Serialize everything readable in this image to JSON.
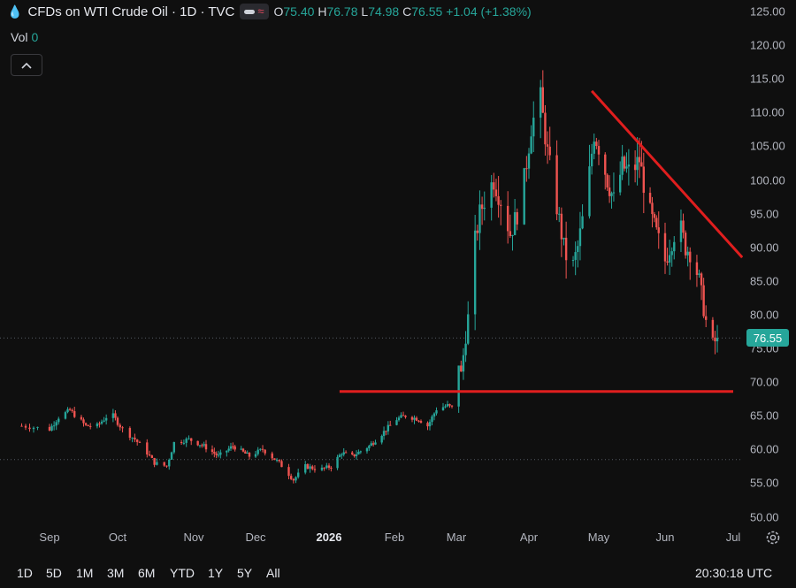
{
  "header": {
    "title": "CFDs on WTI Crude Oil · 1D · TVC",
    "ohlc": {
      "o_label": "O",
      "o": "75.40",
      "h_label": "H",
      "h": "76.78",
      "l_label": "L",
      "l": "74.98",
      "c_label": "C",
      "c": "76.55",
      "change": "+1.04 (+1.38%)"
    },
    "vol_label": "Vol",
    "vol_value": "0"
  },
  "current_price": "76.55",
  "footer": {
    "ranges": [
      "1D",
      "5D",
      "1M",
      "3M",
      "6M",
      "YTD",
      "1Y",
      "5Y",
      "All"
    ],
    "time": "20:30:18 UTC"
  },
  "colors": {
    "up": "#26a69a",
    "down": "#ef5350",
    "annotation": "#e01e1e",
    "bg": "#0f0f0f"
  },
  "chart_data": {
    "type": "candlestick",
    "y_ticks": [
      "125.00",
      "120.00",
      "115.00",
      "110.00",
      "105.00",
      "100.00",
      "95.00",
      "90.00",
      "85.00",
      "80.00",
      "75.00",
      "70.00",
      "65.00",
      "60.00",
      "55.00",
      "50.00"
    ],
    "ylim": [
      48.5,
      126
    ],
    "x_ticks": [
      "Sep",
      "Oct",
      "Nov",
      "Dec",
      "2026",
      "Feb",
      "Mar",
      "Apr",
      "May",
      "Jun",
      "Jul"
    ],
    "series": [
      {
        "anchors": [
          [
            "2025-08-25",
            63.5
          ],
          [
            "2025-09-01",
            63.0
          ],
          [
            "2025-09-05",
            64.8
          ],
          [
            "2025-09-10",
            65.8
          ],
          [
            "2025-09-17",
            63.5
          ],
          [
            "2025-09-22",
            63.5
          ],
          [
            "2025-09-28",
            65.5
          ],
          [
            "2025-10-03",
            63.0
          ],
          [
            "2025-10-08",
            61.5
          ],
          [
            "2025-10-12",
            60.0
          ],
          [
            "2025-10-16",
            58.0
          ],
          [
            "2025-10-21",
            57.5
          ],
          [
            "2025-10-24",
            61.0
          ],
          [
            "2025-10-30",
            61.5
          ],
          [
            "2025-11-06",
            60.5
          ],
          [
            "2025-11-13",
            59.0
          ],
          [
            "2025-11-20",
            60.5
          ],
          [
            "2025-11-28",
            59.0
          ],
          [
            "2025-12-04",
            60.0
          ],
          [
            "2025-12-11",
            58.0
          ],
          [
            "2025-12-17",
            55.5
          ],
          [
            "2025-12-22",
            57.5
          ],
          [
            "2025-12-28",
            57.0
          ],
          [
            "2026-01-02",
            57.5
          ],
          [
            "2026-01-07",
            59.5
          ],
          [
            "2026-01-12",
            59.0
          ],
          [
            "2026-01-20",
            60.5
          ],
          [
            "2026-01-25",
            62.0
          ],
          [
            "2026-02-02",
            64.5
          ],
          [
            "2026-02-06",
            65.0
          ],
          [
            "2026-02-12",
            64.5
          ],
          [
            "2026-02-16",
            63.5
          ],
          [
            "2026-02-20",
            66.0
          ],
          [
            "2026-02-25",
            66.5
          ],
          [
            "2026-02-28",
            66.0
          ],
          [
            "2026-03-02",
            73.0
          ],
          [
            "2026-03-03",
            71.0
          ],
          [
            "2026-03-05",
            77.0
          ],
          [
            "2026-03-07",
            82.0
          ],
          [
            "2026-03-09",
            91.0
          ],
          [
            "2026-03-11",
            95.0
          ],
          [
            "2026-03-14",
            98.0
          ],
          [
            "2026-03-17",
            100.0
          ],
          [
            "2026-03-20",
            97.0
          ],
          [
            "2026-03-24",
            92.0
          ],
          [
            "2026-03-27",
            95.0
          ],
          [
            "2026-03-30",
            100.0
          ],
          [
            "2026-04-02",
            108.0
          ],
          [
            "2026-04-06",
            112.0
          ],
          [
            "2026-04-09",
            104.0
          ],
          [
            "2026-04-12",
            98.0
          ],
          [
            "2026-04-16",
            90.0
          ],
          [
            "2026-04-19",
            86.0
          ],
          [
            "2026-04-22",
            90.0
          ],
          [
            "2026-04-26",
            98.0
          ],
          [
            "2026-04-29",
            107.0
          ],
          [
            "2026-05-02",
            104.0
          ],
          [
            "2026-05-05",
            100.0
          ],
          [
            "2026-05-08",
            97.0
          ],
          [
            "2026-05-12",
            102.0
          ],
          [
            "2026-05-16",
            101.0
          ],
          [
            "2026-05-20",
            103.0
          ],
          [
            "2026-05-24",
            96.0
          ],
          [
            "2026-05-28",
            92.0
          ],
          [
            "2026-06-01",
            88.0
          ],
          [
            "2026-06-04",
            91.0
          ],
          [
            "2026-06-07",
            94.0
          ],
          [
            "2026-06-10",
            90.0
          ],
          [
            "2026-06-13",
            89.0
          ],
          [
            "2026-06-16",
            85.0
          ],
          [
            "2026-06-19",
            79.0
          ],
          [
            "2026-06-22",
            75.5
          ],
          [
            "2026-06-24",
            76.55
          ]
        ]
      }
    ],
    "annotations": [
      {
        "type": "horizontal_line",
        "y": 68.6,
        "x1": "2026-01-06",
        "x2": "2026-07-01"
      },
      {
        "type": "trend_line",
        "from": [
          "2026-04-28",
          113.2
        ],
        "to": [
          "2026-07-05",
          88.5
        ]
      }
    ],
    "dotted_levels": [
      76.55,
      58.5
    ]
  }
}
